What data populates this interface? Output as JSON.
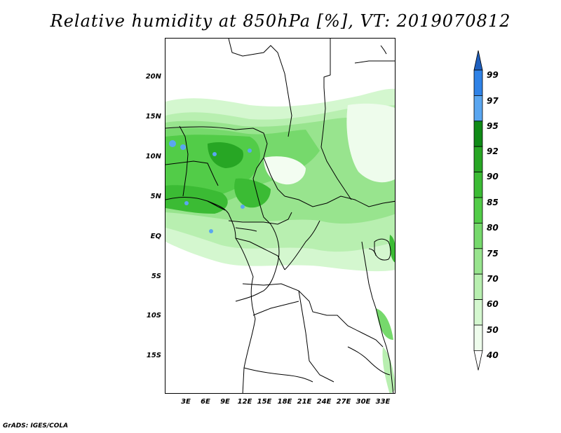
{
  "title": "Relative humidity at 850hPa [%], VT: 2019070812",
  "credit": "GrADS: IGES/COLA",
  "map": {
    "y_axis_labels": [
      "20N",
      "15N",
      "10N",
      "5N",
      "EQ",
      "5S",
      "10S",
      "15S"
    ],
    "x_axis_labels": [
      "3E",
      "6E",
      "9E",
      "12E",
      "15E",
      "18E",
      "21E",
      "24E",
      "27E",
      "30E",
      "33E"
    ]
  },
  "colorbar": {
    "labels": [
      "99",
      "97",
      "95",
      "92",
      "90",
      "85",
      "80",
      "75",
      "70",
      "60",
      "50",
      "40"
    ],
    "colors": [
      "#1e5fbe",
      "#2f82e6",
      "#5aa6f0",
      "#0f8a16",
      "#27a624",
      "#3bbb34",
      "#52cc48",
      "#76d96c",
      "#98e48e",
      "#b8efb0",
      "#d4f7cf",
      "#eefcec"
    ]
  }
}
